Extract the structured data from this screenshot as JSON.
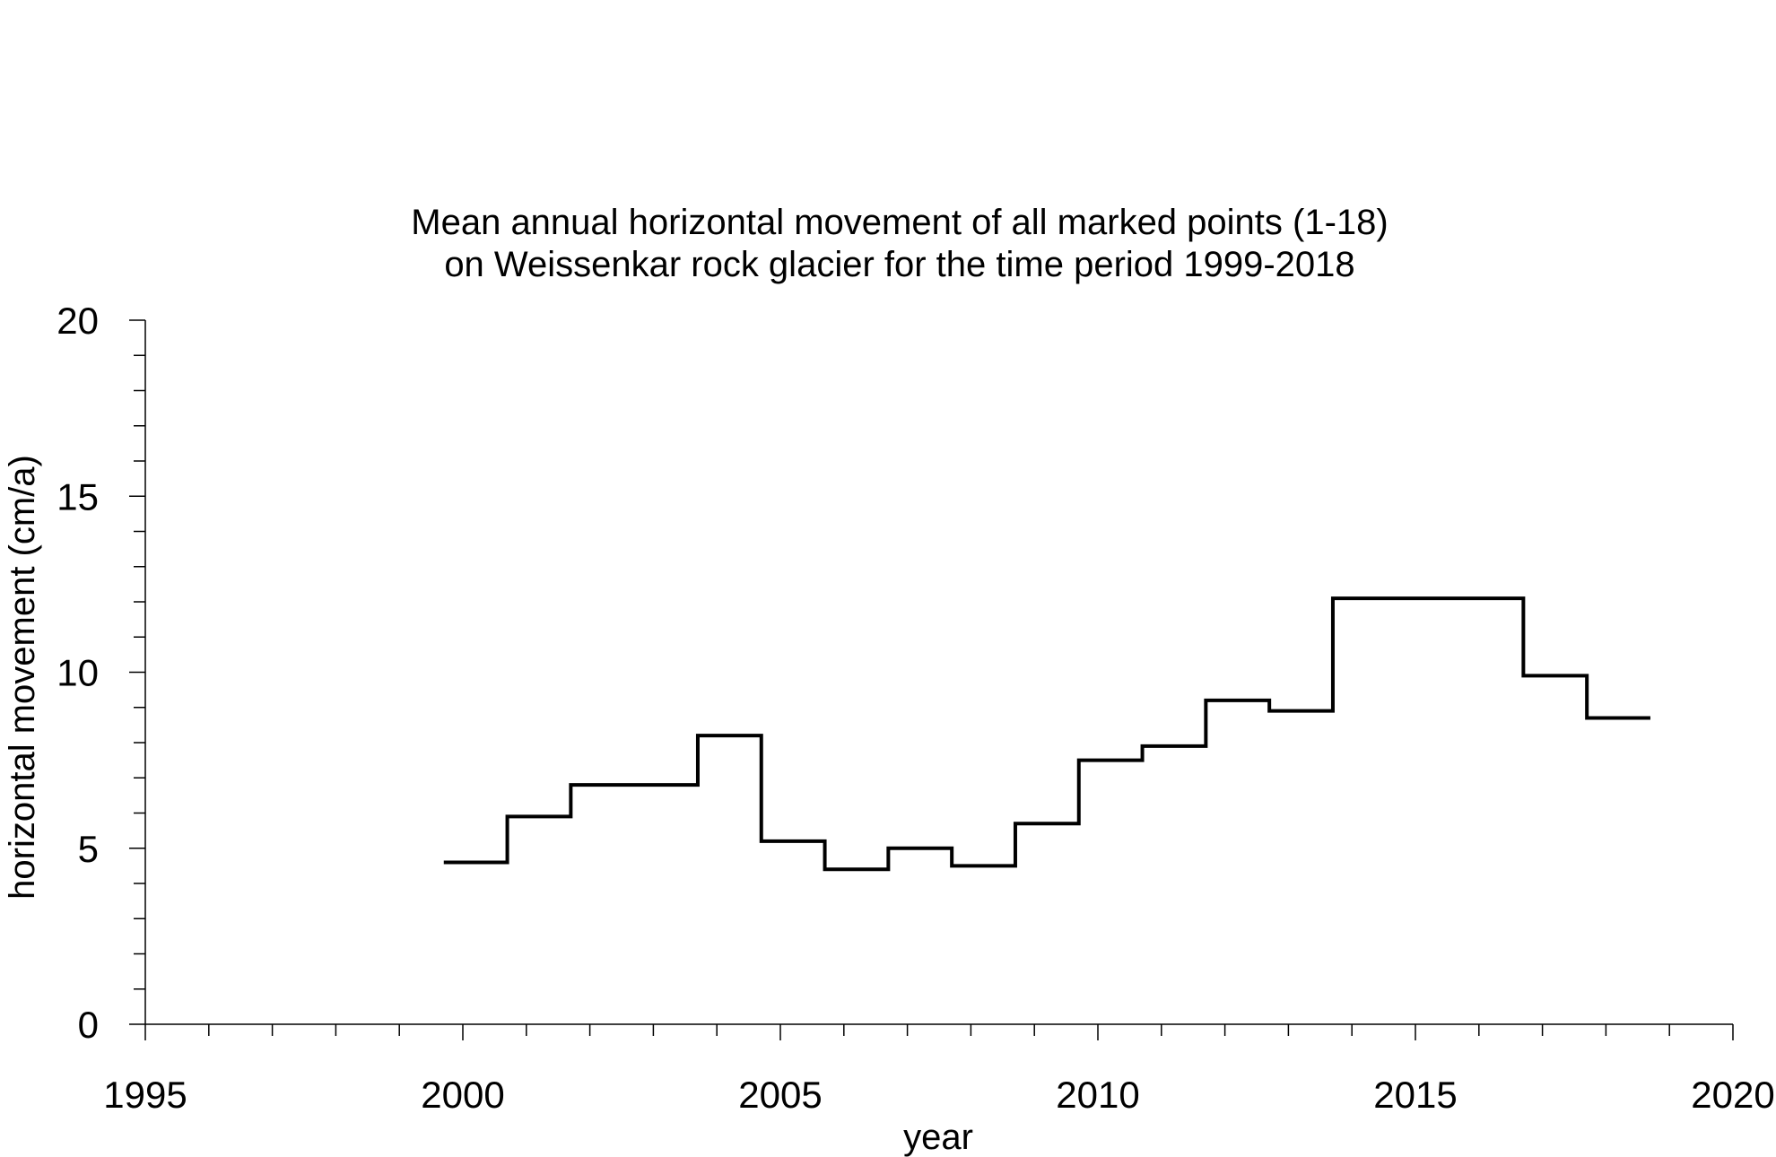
{
  "chart_data": {
    "type": "line",
    "style": "step",
    "title": "Mean annual horizontal movement of all marked points (1-18)",
    "subtitle": "on Weissenkar rock glacier for the time period 1999-2018",
    "xlabel": "year",
    "ylabel": "horizontal movement (cm/a)",
    "xlim": [
      1995,
      2020
    ],
    "ylim": [
      0,
      20
    ],
    "xticks": [
      1995,
      2000,
      2005,
      2010,
      2015,
      2020
    ],
    "yticks": [
      0,
      5,
      10,
      15,
      20
    ],
    "grid": false,
    "series": [
      {
        "color": "#000000",
        "segments": [
          {
            "from": 1999.7,
            "to": 2000.7,
            "value": 4.6
          },
          {
            "from": 2000.7,
            "to": 2001.7,
            "value": 5.9
          },
          {
            "from": 2001.7,
            "to": 2003.7,
            "value": 6.8
          },
          {
            "from": 2003.7,
            "to": 2004.7,
            "value": 8.2
          },
          {
            "from": 2004.7,
            "to": 2005.7,
            "value": 5.2
          },
          {
            "from": 2005.7,
            "to": 2006.7,
            "value": 4.4
          },
          {
            "from": 2006.7,
            "to": 2007.7,
            "value": 5.0
          },
          {
            "from": 2007.7,
            "to": 2008.7,
            "value": 4.5
          },
          {
            "from": 2008.7,
            "to": 2009.7,
            "value": 5.7
          },
          {
            "from": 2009.7,
            "to": 2010.7,
            "value": 7.5
          },
          {
            "from": 2010.7,
            "to": 2011.7,
            "value": 7.9
          },
          {
            "from": 2011.7,
            "to": 2012.7,
            "value": 9.2
          },
          {
            "from": 2012.7,
            "to": 2013.7,
            "value": 8.9
          },
          {
            "from": 2013.7,
            "to": 2016.7,
            "value": 12.1
          },
          {
            "from": 2016.7,
            "to": 2017.7,
            "value": 9.9
          },
          {
            "from": 2017.7,
            "to": 2018.7,
            "value": 8.7
          }
        ]
      }
    ]
  }
}
